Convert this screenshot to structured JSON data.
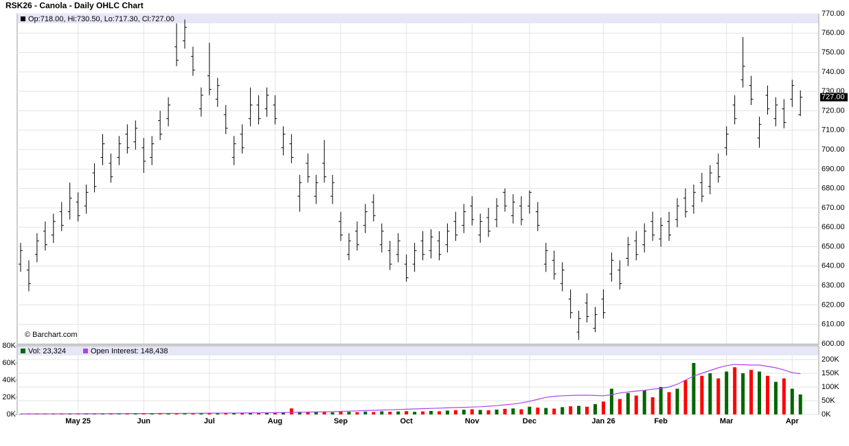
{
  "chart_data": [
    {
      "type": "ohlc",
      "title": "RSK26 - Canola - Daily OHLC Chart",
      "ohlc_legend": "Op:718.00, Hi:730.50, Lo:717.30, Cl:727.00",
      "credit": "© Barchart.com",
      "last_label": "727.00",
      "color": "#000000",
      "categories": [
        null,
        null,
        null,
        null,
        null,
        null,
        null,
        "May 25",
        null,
        null,
        null,
        null,
        null,
        null,
        null,
        "Jun",
        null,
        null,
        null,
        null,
        null,
        null,
        null,
        "Jul",
        null,
        null,
        null,
        null,
        null,
        null,
        null,
        "Aug",
        null,
        null,
        null,
        null,
        null,
        null,
        null,
        "Sep",
        null,
        null,
        null,
        null,
        null,
        null,
        null,
        "Oct",
        null,
        null,
        null,
        null,
        null,
        null,
        null,
        "Nov",
        null,
        null,
        null,
        null,
        null,
        null,
        "Dec",
        null,
        null,
        null,
        null,
        null,
        null,
        null,
        null,
        "Jan 26",
        null,
        null,
        null,
        null,
        null,
        null,
        "Feb",
        null,
        null,
        null,
        null,
        null,
        null,
        null,
        "Mar",
        null,
        null,
        null,
        null,
        null,
        null,
        null,
        "Apr",
        null
      ],
      "open": [
        641,
        638,
        646,
        658,
        656,
        668,
        668,
        673,
        671,
        688,
        696,
        693,
        696,
        708,
        704,
        701,
        696,
        715,
        716,
        753,
        756,
        748,
        721,
        738,
        726,
        718,
        696,
        708,
        716,
        723,
        721,
        723,
        701,
        703,
        676,
        693,
        676,
        693,
        676,
        663,
        646,
        658,
        661,
        673,
        651,
        648,
        646,
        641,
        641,
        653,
        648,
        653,
        651,
        663,
        661,
        671,
        656,
        665,
        664,
        678,
        666,
        671,
        671,
        668,
        641,
        643,
        631,
        623,
        606,
        621,
        608,
        623,
        636,
        638,
        644,
        653,
        651,
        663,
        654,
        663,
        664,
        675,
        671,
        683,
        681,
        693,
        701,
        723,
        736,
        733,
        706,
        728,
        716,
        721,
        726,
        718
      ],
      "high": [
        652,
        643,
        657,
        663,
        667,
        673,
        683,
        678,
        682,
        693,
        708,
        698,
        707,
        713,
        715,
        706,
        707,
        720,
        727,
        765,
        767,
        753,
        732,
        755,
        737,
        723,
        707,
        713,
        732,
        728,
        732,
        728,
        712,
        708,
        687,
        698,
        687,
        705,
        687,
        668,
        657,
        663,
        672,
        677,
        662,
        653,
        657,
        646,
        652,
        658,
        659,
        658,
        662,
        668,
        672,
        676,
        667,
        670,
        675,
        680,
        677,
        676,
        679,
        673,
        652,
        648,
        642,
        628,
        617,
        626,
        619,
        628,
        647,
        643,
        655,
        658,
        662,
        668,
        665,
        668,
        675,
        680,
        682,
        688,
        692,
        698,
        712,
        728,
        758,
        738,
        717,
        733,
        727,
        726,
        736,
        730.5
      ],
      "low": [
        637,
        627,
        642,
        648,
        652,
        658,
        664,
        663,
        667,
        678,
        692,
        683,
        692,
        698,
        700,
        688,
        692,
        705,
        712,
        743,
        752,
        738,
        717,
        728,
        722,
        708,
        692,
        698,
        712,
        713,
        717,
        713,
        697,
        693,
        668,
        683,
        672,
        683,
        672,
        653,
        643,
        648,
        657,
        663,
        647,
        638,
        642,
        632,
        637,
        643,
        644,
        643,
        647,
        653,
        657,
        661,
        652,
        655,
        660,
        668,
        662,
        661,
        667,
        658,
        637,
        633,
        627,
        613,
        602,
        611,
        606,
        613,
        632,
        628,
        640,
        643,
        647,
        653,
        650,
        653,
        660,
        665,
        667,
        673,
        677,
        683,
        697,
        713,
        732,
        723,
        701,
        718,
        712,
        711,
        722,
        717.3
      ],
      "close": [
        648,
        631,
        653,
        651,
        663,
        661,
        675,
        666,
        678,
        681,
        703,
        686,
        703,
        701,
        711,
        694,
        703,
        708,
        723,
        746,
        763,
        741,
        728,
        731,
        733,
        711,
        703,
        701,
        723,
        716,
        728,
        716,
        708,
        696,
        683,
        686,
        683,
        686,
        683,
        656,
        653,
        651,
        668,
        666,
        658,
        641,
        653,
        634,
        648,
        646,
        655,
        646,
        658,
        656,
        668,
        664,
        663,
        658,
        671,
        671,
        673,
        664,
        678,
        661,
        648,
        636,
        638,
        616,
        613,
        614,
        615,
        616,
        643,
        631,
        651,
        646,
        658,
        656,
        661,
        656,
        671,
        668,
        678,
        676,
        688,
        686,
        708,
        716,
        743,
        726,
        713,
        721,
        723,
        714,
        733,
        727
      ],
      "ylim": [
        600,
        770
      ],
      "yticks": [
        {
          "value": 600,
          "label": "600.00"
        },
        {
          "value": 610,
          "label": "610.00"
        },
        {
          "value": 620,
          "label": "620.00"
        },
        {
          "value": 630,
          "label": "630.00"
        },
        {
          "value": 640,
          "label": "640.00"
        },
        {
          "value": 650,
          "label": "650.00"
        },
        {
          "value": 660,
          "label": "660.00"
        },
        {
          "value": 670,
          "label": "670.00"
        },
        {
          "value": 680,
          "label": "680.00"
        },
        {
          "value": 690,
          "label": "690.00"
        },
        {
          "value": 700,
          "label": "700.00"
        },
        {
          "value": 710,
          "label": "710.00"
        },
        {
          "value": 720,
          "label": "720.00"
        },
        {
          "value": 730,
          "label": "730.00"
        },
        {
          "value": 740,
          "label": "740.00"
        },
        {
          "value": 750,
          "label": "750.00"
        },
        {
          "value": 760,
          "label": "760.00"
        },
        {
          "value": 770,
          "label": "770.00"
        }
      ],
      "grid": true
    },
    {
      "type": "volume",
      "up_color": "#006600",
      "down_color": "#ff0000",
      "series": [
        {
          "name": "Vol: 23,324",
          "color": "#006600",
          "values": [
            400,
            300,
            500,
            350,
            600,
            450,
            700,
            500,
            800,
            600,
            700,
            900,
            650,
            1000,
            800,
            1100,
            900,
            1200,
            1000,
            1300,
            1500,
            1200,
            1400,
            1600,
            1300,
            1800,
            1500,
            1700,
            2000,
            1600,
            1800,
            2200,
            2600,
            7000,
            3000,
            2500,
            2800,
            3200,
            2400,
            3500,
            3000,
            2600,
            3300,
            2800,
            3600,
            3100,
            3400,
            3800,
            3000,
            3500,
            4000,
            3600,
            4500,
            5000,
            5500,
            6000,
            5200,
            4800,
            5600,
            6500,
            7000,
            6000,
            9000,
            8000,
            7500,
            6800,
            8500,
            9500,
            10000,
            9000,
            12000,
            15000,
            30000,
            18000,
            25000,
            22000,
            28000,
            20000,
            32000,
            26000,
            30000,
            40000,
            60000,
            45000,
            48000,
            42000,
            50000,
            55000,
            48000,
            52000,
            50000,
            45000,
            38000,
            42000,
            30000,
            23324
          ]
        },
        {
          "name": "Open Interest: 148,438",
          "color": "#b040f0",
          "axis": "y2",
          "values": [
            2000,
            2100,
            2200,
            2300,
            2400,
            2500,
            2600,
            2700,
            2800,
            2900,
            3000,
            3100,
            3200,
            3300,
            3400,
            3500,
            3600,
            3700,
            3800,
            3900,
            4000,
            4200,
            4400,
            4600,
            4800,
            5000,
            5200,
            5400,
            5600,
            5800,
            6000,
            6500,
            7000,
            7500,
            8000,
            8500,
            9000,
            9500,
            10000,
            11000,
            12000,
            13000,
            14000,
            15000,
            16000,
            17000,
            18000,
            19000,
            20000,
            21000,
            22000,
            23000,
            24000,
            25000,
            26000,
            27000,
            28000,
            30000,
            32000,
            35000,
            38000,
            42000,
            48000,
            55000,
            62000,
            66000,
            68000,
            69000,
            70000,
            70000,
            69000,
            68000,
            72000,
            78000,
            82000,
            85000,
            88000,
            92000,
            95000,
            100000,
            110000,
            125000,
            140000,
            150000,
            160000,
            170000,
            178000,
            182000,
            181000,
            180000,
            180000,
            175000,
            170000,
            162000,
            152000,
            148438
          ]
        }
      ],
      "ylim": [
        0,
        80000
      ],
      "yticks": [
        {
          "value": 0,
          "label": "0K"
        },
        {
          "value": 20000,
          "label": "20K"
        },
        {
          "value": 40000,
          "label": "40K"
        },
        {
          "value": 60000,
          "label": "60K"
        },
        {
          "value": 80000,
          "label": "80K"
        }
      ],
      "y2lim": [
        0,
        250000
      ],
      "y2ticks": [
        {
          "value": 0,
          "label": "0K"
        },
        {
          "value": 50000,
          "label": "50K"
        },
        {
          "value": 100000,
          "label": "100K"
        },
        {
          "value": 150000,
          "label": "150K"
        },
        {
          "value": 200000,
          "label": "200K"
        }
      ],
      "grid": true
    }
  ]
}
